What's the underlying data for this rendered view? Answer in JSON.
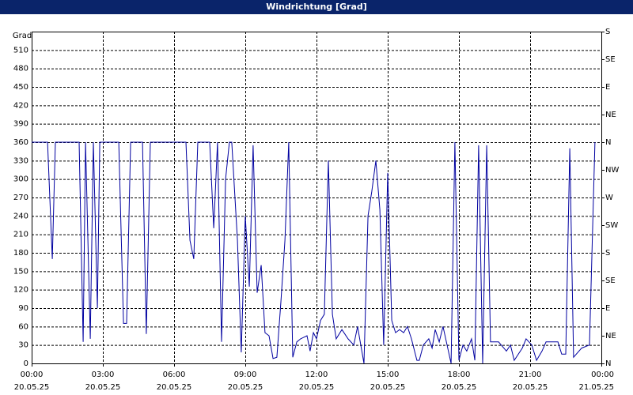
{
  "chart_data": {
    "type": "line",
    "title": "Windrichtung [Grad]",
    "y_label": "Grad",
    "x": [
      0,
      0.67,
      0.87,
      1,
      2,
      2.17,
      2.27,
      2.47,
      2.6,
      2.77,
      2.87,
      3.67,
      3.87,
      4,
      4.17,
      4.67,
      4.83,
      5,
      6.5,
      6.67,
      6.83,
      7,
      7.5,
      7.67,
      7.83,
      8,
      8.17,
      8.33,
      8.43,
      8.67,
      8.83,
      9,
      9.17,
      9.33,
      9.5,
      9.67,
      9.83,
      10,
      10.17,
      10.33,
      10.5,
      10.67,
      10.83,
      11,
      11.17,
      11.33,
      11.6,
      11.73,
      11.87,
      12,
      12.17,
      12.33,
      12.5,
      12.67,
      12.83,
      13.07,
      13.33,
      13.57,
      13.73,
      14,
      14.17,
      14.33,
      14.5,
      14.67,
      14.83,
      15,
      15.17,
      15.33,
      15.5,
      15.67,
      15.83,
      16,
      16.23,
      16.33,
      16.5,
      16.73,
      16.87,
      17,
      17.17,
      17.33,
      17.5,
      17.67,
      17.83,
      18,
      18.17,
      18.33,
      18.53,
      18.67,
      18.83,
      19,
      19.17,
      19.33,
      19.67,
      20,
      20.17,
      20.33,
      20.67,
      20.83,
      21.07,
      21.27,
      21.5,
      21.67,
      22.17,
      22.33,
      22.5,
      22.67,
      22.83,
      23.17,
      23.5,
      23.73
    ],
    "series": [
      {
        "name": "Windrichtung",
        "color": "#0000a0",
        "values": [
          360,
          360,
          170,
          360,
          360,
          35,
          360,
          40,
          360,
          90,
          360,
          360,
          65,
          65,
          360,
          360,
          48,
          360,
          360,
          200,
          170,
          360,
          360,
          220,
          360,
          35,
          300,
          360,
          360,
          200,
          18,
          240,
          125,
          355,
          115,
          160,
          50,
          45,
          8,
          10,
          100,
          200,
          360,
          10,
          35,
          40,
          45,
          20,
          50,
          40,
          70,
          80,
          330,
          80,
          40,
          55,
          40,
          30,
          60,
          0,
          240,
          280,
          330,
          250,
          30,
          310,
          70,
          50,
          55,
          50,
          60,
          40,
          5,
          5,
          30,
          40,
          25,
          55,
          35,
          60,
          30,
          0,
          360,
          5,
          30,
          20,
          40,
          5,
          355,
          0,
          355,
          35,
          35,
          20,
          30,
          5,
          25,
          40,
          30,
          5,
          20,
          35,
          35,
          15,
          15,
          350,
          10,
          25,
          30,
          360
        ]
      }
    ],
    "xlim": [
      0,
      24
    ],
    "xticks": [
      {
        "value": 0,
        "label": "00:00"
      },
      {
        "value": 3,
        "label": "03:00"
      },
      {
        "value": 6,
        "label": "06:00"
      },
      {
        "value": 9,
        "label": "09:00"
      },
      {
        "value": 12,
        "label": "12:00"
      },
      {
        "value": 15,
        "label": "15:00"
      },
      {
        "value": 18,
        "label": "18:00"
      },
      {
        "value": 21,
        "label": "21:00"
      },
      {
        "value": 24,
        "label": "00:00"
      }
    ],
    "xtick_dates": [
      "20.05.25",
      "20.05.25",
      "20.05.25",
      "20.05.25",
      "20.05.25",
      "20.05.25",
      "20.05.25",
      "20.05.25",
      "21.05.25"
    ],
    "ylim": [
      0,
      540
    ],
    "yticks": [
      0,
      30,
      60,
      90,
      120,
      150,
      180,
      210,
      240,
      270,
      300,
      330,
      360,
      390,
      420,
      450,
      480,
      510
    ],
    "y2lim": [
      0,
      540
    ],
    "y2ticks": [
      {
        "value": 0,
        "label": "N"
      },
      {
        "value": 45,
        "label": "NE"
      },
      {
        "value": 90,
        "label": "E"
      },
      {
        "value": 135,
        "label": "SE"
      },
      {
        "value": 180,
        "label": "S"
      },
      {
        "value": 225,
        "label": "SW"
      },
      {
        "value": 270,
        "label": "W"
      },
      {
        "value": 315,
        "label": "NW"
      },
      {
        "value": 360,
        "label": "N"
      },
      {
        "value": 405,
        "label": "NE"
      },
      {
        "value": 450,
        "label": "E"
      },
      {
        "value": 495,
        "label": "SE"
      },
      {
        "value": 540,
        "label": "S"
      }
    ],
    "grid": true
  }
}
